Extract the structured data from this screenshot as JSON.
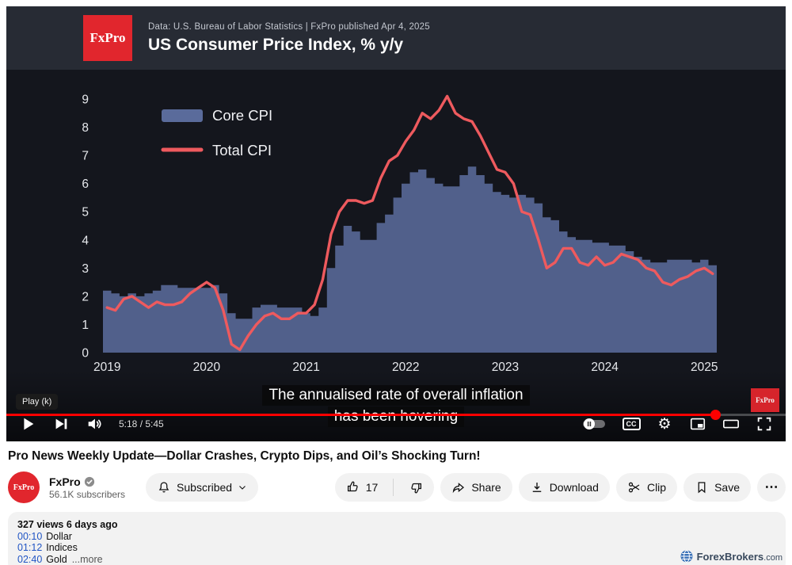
{
  "player": {
    "header": {
      "logo": "FxPro",
      "source": "Data: U.S. Bureau of Labor Statistics  |  FxPro published Apr 4, 2025",
      "title": "US Consumer Price Index, % y/y"
    },
    "captions": [
      "The annualised rate of overall inflation",
      "has been hovering"
    ],
    "play_tooltip": "Play (k)",
    "watermark": "FxPro",
    "time_display": "5:18 / 5:45",
    "cc_label": "CC",
    "progress_percent": 91
  },
  "chart_data": {
    "type": "area+line",
    "title": "US Consumer Price Index, % y/y",
    "x_years": [
      "2019",
      "2020",
      "2021",
      "2022",
      "2023",
      "2024",
      "2025"
    ],
    "months_per_year": 12,
    "ylim": [
      0,
      9
    ],
    "yticks": [
      0,
      1,
      2,
      3,
      4,
      5,
      6,
      7,
      8,
      9
    ],
    "legend_position": "top-left",
    "grid": false,
    "colors": {
      "core": "#5a6b9b",
      "total": "#ee5a5e",
      "background": "#14161d"
    },
    "series": [
      {
        "name": "Core CPI",
        "type": "area",
        "values": [
          2.2,
          2.1,
          2.0,
          2.1,
          2.0,
          2.1,
          2.2,
          2.4,
          2.4,
          2.3,
          2.3,
          2.3,
          2.3,
          2.4,
          2.1,
          1.4,
          1.2,
          1.2,
          1.6,
          1.7,
          1.7,
          1.6,
          1.6,
          1.6,
          1.4,
          1.3,
          1.6,
          3.0,
          3.8,
          4.5,
          4.3,
          4.0,
          4.0,
          4.6,
          4.9,
          5.5,
          6.0,
          6.4,
          6.5,
          6.2,
          6.0,
          5.9,
          5.9,
          6.3,
          6.6,
          6.3,
          6.0,
          5.7,
          5.6,
          5.5,
          5.6,
          5.5,
          5.3,
          4.8,
          4.7,
          4.3,
          4.1,
          4.0,
          4.0,
          3.9,
          3.9,
          3.8,
          3.8,
          3.6,
          3.4,
          3.3,
          3.2,
          3.2,
          3.3,
          3.3,
          3.3,
          3.2,
          3.3,
          3.1
        ]
      },
      {
        "name": "Total CPI",
        "type": "line",
        "values": [
          1.6,
          1.5,
          1.9,
          2.0,
          1.8,
          1.6,
          1.8,
          1.7,
          1.7,
          1.8,
          2.1,
          2.3,
          2.5,
          2.3,
          1.5,
          0.3,
          0.1,
          0.6,
          1.0,
          1.3,
          1.4,
          1.2,
          1.2,
          1.4,
          1.4,
          1.7,
          2.6,
          4.2,
          5.0,
          5.4,
          5.4,
          5.3,
          5.4,
          6.2,
          6.8,
          7.0,
          7.5,
          7.9,
          8.5,
          8.3,
          8.6,
          9.1,
          8.5,
          8.3,
          8.2,
          7.7,
          7.1,
          6.5,
          6.4,
          6.0,
          5.0,
          4.9,
          4.0,
          3.0,
          3.2,
          3.7,
          3.7,
          3.2,
          3.1,
          3.4,
          3.1,
          3.2,
          3.5,
          3.4,
          3.3,
          3.0,
          2.9,
          2.5,
          2.4,
          2.6,
          2.7,
          2.9,
          3.0,
          2.8
        ]
      }
    ]
  },
  "video_info": {
    "title": "Pro News Weekly Update—Dollar Crashes, Crypto Dips, and Oil’s Shocking Turn!",
    "channel": {
      "name": "FxPro",
      "avatar": "FxPro",
      "subscribers": "56.1K subscribers"
    },
    "subscribe_label": "Subscribed",
    "actions": {
      "like_count": "17",
      "share": "Share",
      "download": "Download",
      "clip": "Clip",
      "save": "Save"
    },
    "description": {
      "meta": "327 views  6 days ago",
      "chapters": [
        {
          "time": "00:10",
          "label": "Dollar"
        },
        {
          "time": "01:12",
          "label": "Indices"
        },
        {
          "time": "02:40",
          "label": "Gold"
        }
      ],
      "more_label": "...more"
    },
    "site_watermark": "ForexBrokers",
    "site_watermark_tld": ".com"
  }
}
